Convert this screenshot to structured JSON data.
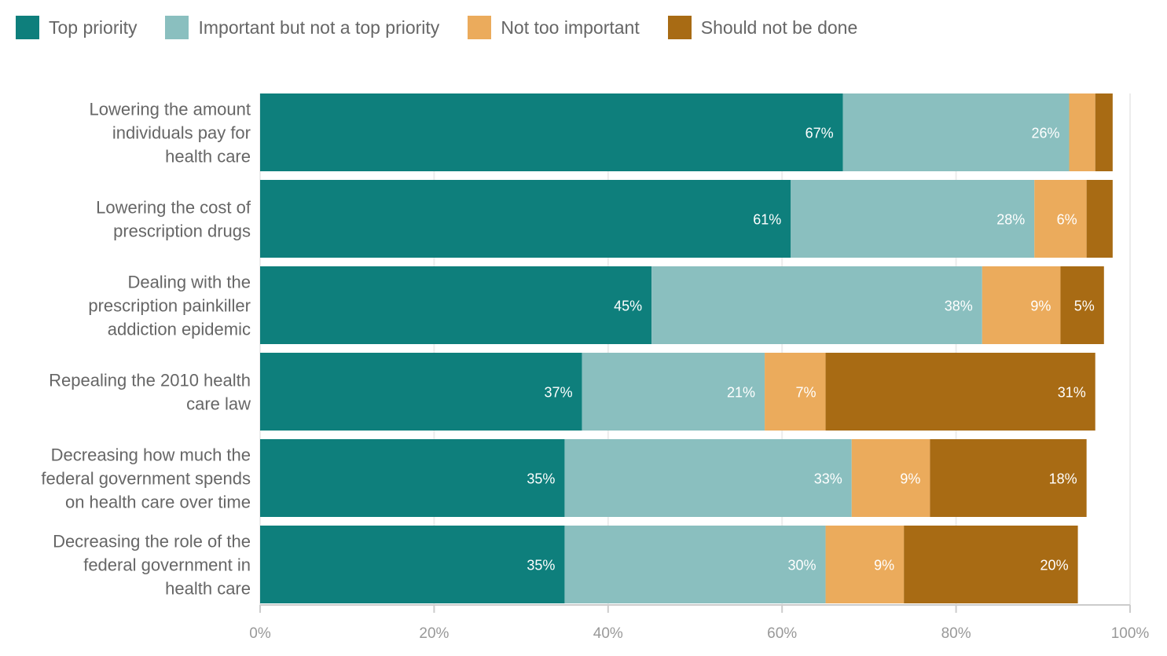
{
  "chart_data": {
    "type": "bar",
    "orientation": "horizontal",
    "stacked": true,
    "title": "",
    "xlabel": "",
    "ylabel": "",
    "xlim": [
      0,
      100
    ],
    "x_ticks": [
      "0%",
      "20%",
      "40%",
      "60%",
      "80%",
      "100%"
    ],
    "grid": true,
    "legend_position": "top-left",
    "categories": [
      [
        "Lowering the amount",
        "individuals pay for",
        "health care"
      ],
      [
        "Lowering the cost of",
        "prescription drugs"
      ],
      [
        "Dealing with the",
        "prescription painkiller",
        "addiction epidemic"
      ],
      [
        "Repealing the 2010 health",
        "care law"
      ],
      [
        "Decreasing how much the",
        "federal government spends",
        "on health care over time"
      ],
      [
        "Decreasing the role of the",
        "federal government in",
        "health care"
      ]
    ],
    "series": [
      {
        "name": "Top priority",
        "color": "#0e7f7c",
        "values": [
          67,
          61,
          45,
          37,
          35,
          35
        ],
        "labels": [
          "67%",
          "61%",
          "45%",
          "37%",
          "35%",
          "35%"
        ]
      },
      {
        "name": "Important but not a top priority",
        "color": "#8abfbf",
        "values": [
          26,
          28,
          38,
          21,
          33,
          30
        ],
        "labels": [
          "26%",
          "28%",
          "38%",
          "21%",
          "33%",
          "30%"
        ]
      },
      {
        "name": "Not too important",
        "color": "#ebab5c",
        "values": [
          3,
          6,
          9,
          7,
          9,
          9
        ],
        "labels": [
          "",
          "6%",
          "9%",
          "7%",
          "9%",
          "9%"
        ]
      },
      {
        "name": "Should not be done",
        "color": "#a86b14",
        "values": [
          2,
          3,
          5,
          31,
          18,
          20
        ],
        "labels": [
          "",
          "",
          "5%",
          "31%",
          "18%",
          "20%"
        ]
      }
    ]
  }
}
